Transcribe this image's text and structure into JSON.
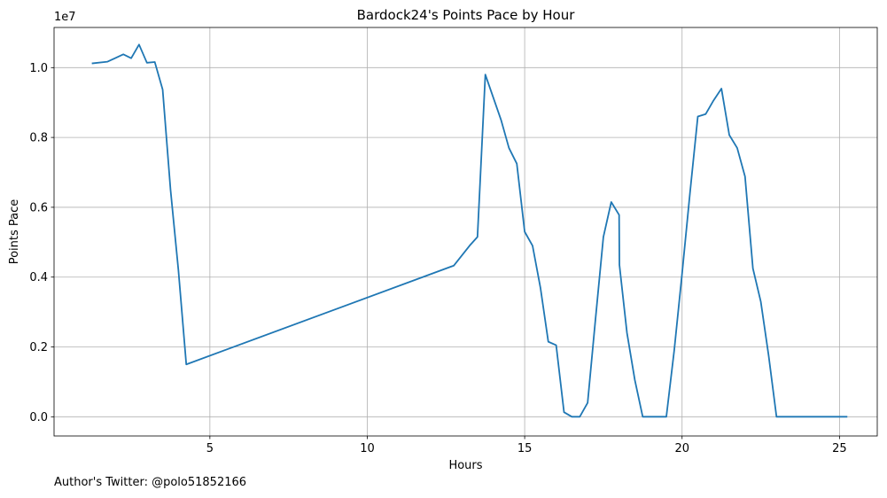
{
  "footer": {
    "text": "Author's Twitter: @polo51852166"
  },
  "chart_data": {
    "type": "line",
    "title": "Bardock24's Points Pace by Hour",
    "xlabel": "Hours",
    "ylabel": "Points Pace",
    "y_offset_text": "1e7",
    "xlim": [
      0.05,
      26.2
    ],
    "ylim": [
      -0.055,
      1.115
    ],
    "x_ticks": [
      5,
      10,
      15,
      20,
      25
    ],
    "x_tick_labels": [
      "5",
      "10",
      "15",
      "20",
      "25"
    ],
    "y_ticks": [
      0.0,
      0.2,
      0.4,
      0.6,
      0.8,
      1.0
    ],
    "y_tick_labels": [
      "0.0",
      "0.2",
      "0.4",
      "0.6",
      "0.8",
      "1.0"
    ],
    "grid": true,
    "series": [
      {
        "color": "#1f77b4",
        "x": [
          1.25,
          1.75,
          2.25,
          2.5,
          2.75,
          3.0,
          3.25,
          3.5,
          3.75,
          4.0,
          4.25,
          12.75,
          13.25,
          13.5,
          13.75,
          14.0,
          14.25,
          14.5,
          14.75,
          15.0,
          15.25,
          15.5,
          15.75,
          16.0,
          16.25,
          16.5,
          16.75,
          17.0,
          17.25,
          17.5,
          17.75,
          18.0,
          18.01,
          18.25,
          18.5,
          18.75,
          19.0,
          19.25,
          19.5,
          19.75,
          20.0,
          20.25,
          20.5,
          20.75,
          21.0,
          21.25,
          21.5,
          21.75,
          22.0,
          22.25,
          22.5,
          22.75,
          23.0,
          23.25,
          23.5,
          23.75,
          24.0,
          24.25,
          24.5,
          24.75,
          25.0,
          25.25
        ],
        "y": [
          1.012,
          1.017,
          1.038,
          1.027,
          1.066,
          1.014,
          1.016,
          0.937,
          0.65,
          0.42,
          0.15,
          0.433,
          0.49,
          0.515,
          0.98,
          0.915,
          0.85,
          0.77,
          0.725,
          0.53,
          0.49,
          0.37,
          0.215,
          0.205,
          0.013,
          0.0,
          0.0,
          0.04,
          0.28,
          0.515,
          0.615,
          0.578,
          0.435,
          0.24,
          0.105,
          0.0,
          0.0,
          0.0,
          0.0,
          0.19,
          0.41,
          0.64,
          0.86,
          0.867,
          0.906,
          0.94,
          0.807,
          0.77,
          0.688,
          0.425,
          0.33,
          0.175,
          0.0,
          0.0,
          0.0,
          0.0,
          0.0,
          0.0,
          0.0,
          0.0,
          0.0,
          0.0
        ]
      }
    ]
  }
}
